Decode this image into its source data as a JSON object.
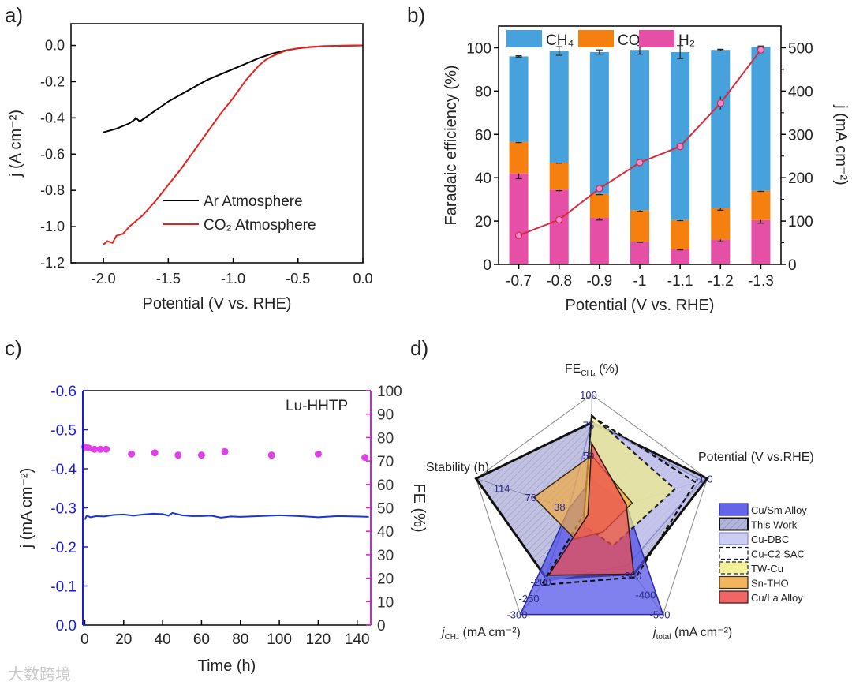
{
  "watermark": "大数跨境",
  "chart_data": [
    {
      "panel_label": "a)",
      "type": "line",
      "title": "",
      "xlabel": "Potential (V vs. RHE)",
      "ylabel": "j (A cm⁻²)",
      "xlim": [
        -2.25,
        0.0
      ],
      "ylim": [
        -1.2,
        0.12
      ],
      "x_ticks": [
        -2.0,
        -1.5,
        -1.0,
        -0.5,
        0.0
      ],
      "x_tick_labels": [
        "-2.0",
        "-1.5",
        "-1.0",
        "-0.5",
        "0.0"
      ],
      "y_ticks": [
        0.0,
        -0.2,
        -0.4,
        -0.6,
        -0.8,
        -1.0,
        -1.2
      ],
      "y_tick_labels": [
        "0.0",
        "-0.2",
        "-0.4",
        "-0.6",
        "-0.8",
        "-1.0",
        "-1.2"
      ],
      "legend_position": "bottom-right",
      "series": [
        {
          "name": "Ar Atmosphere",
          "color": "#000000",
          "x": [
            -2.0,
            -1.9,
            -1.8,
            -1.76,
            -1.75,
            -1.72,
            -1.6,
            -1.5,
            -1.4,
            -1.3,
            -1.2,
            -1.1,
            -1.0,
            -0.9,
            -0.8,
            -0.7,
            -0.6,
            -0.5,
            -0.4,
            -0.2,
            0.0
          ],
          "y": [
            -0.48,
            -0.46,
            -0.43,
            -0.41,
            -0.4,
            -0.42,
            -0.36,
            -0.31,
            -0.27,
            -0.23,
            -0.19,
            -0.16,
            -0.13,
            -0.1,
            -0.07,
            -0.045,
            -0.028,
            -0.016,
            -0.008,
            -0.002,
            0.0
          ]
        },
        {
          "name": "CO₂ Atmosphere",
          "color": "#e8201c",
          "x": [
            -2.0,
            -1.97,
            -1.93,
            -1.9,
            -1.85,
            -1.8,
            -1.7,
            -1.6,
            -1.5,
            -1.4,
            -1.3,
            -1.2,
            -1.1,
            -1.0,
            -0.9,
            -0.8,
            -0.75,
            -0.7,
            -0.6,
            -0.5,
            -0.3,
            0.0
          ],
          "y": [
            -1.1,
            -1.08,
            -1.09,
            -1.05,
            -1.04,
            -1.0,
            -0.94,
            -0.86,
            -0.77,
            -0.68,
            -0.58,
            -0.48,
            -0.38,
            -0.29,
            -0.19,
            -0.11,
            -0.08,
            -0.06,
            -0.03,
            -0.015,
            -0.003,
            0.0
          ]
        }
      ]
    },
    {
      "panel_label": "b)",
      "type": "bar",
      "stacked": true,
      "title": "",
      "xlabel": "Potential (V vs. RHE)",
      "ylabel": "Faradaic efficiency (%)",
      "ylabel_right": "j (mA cm⁻²)",
      "categories": [
        "-0.7",
        "-0.8",
        "-0.9",
        "-1",
        "-1.1",
        "-1.2",
        "-1.3"
      ],
      "ylim": [
        0,
        110
      ],
      "ylim_right": [
        0,
        550
      ],
      "y_ticks": [
        0,
        20,
        40,
        60,
        80,
        100
      ],
      "y_tick_labels": [
        "0",
        "20",
        "40",
        "60",
        "80",
        "100"
      ],
      "y_ticks_right": [
        0,
        100,
        200,
        300,
        400,
        500
      ],
      "y_tick_labels_right": [
        "0",
        "100",
        "200",
        "300",
        "400",
        "500"
      ],
      "legend_position": "top",
      "series": [
        {
          "name": "H₂",
          "color": "#e64fa6",
          "values": [
            42,
            34.5,
            21.5,
            10.5,
            7,
            11.5,
            20.5
          ],
          "errors": [
            2.5,
            0.5,
            1,
            0.3,
            0.3,
            1,
            1.5
          ]
        },
        {
          "name": "CO",
          "color": "#f57f0f",
          "values": [
            14.5,
            12.5,
            11,
            14.5,
            13.5,
            14.5,
            13.5
          ],
          "errors": [
            0.3,
            0.3,
            0.3,
            0.5,
            0.3,
            1,
            0.3
          ]
        },
        {
          "name": "CH₄",
          "color": "#47a1dd",
          "values": [
            39.5,
            51.5,
            65.5,
            74,
            77.5,
            73,
            66.5
          ],
          "errors": [
            0.3,
            2,
            1,
            2,
            3,
            0.3,
            0.3
          ]
        }
      ],
      "legend_order": [
        2,
        1,
        0
      ],
      "line_series": {
        "name": "j",
        "color": "#d42a3c",
        "marker_color": "#f08ad8",
        "values": [
          67,
          103,
          175,
          235,
          272,
          372,
          495
        ],
        "errors": [
          6,
          5,
          8,
          7,
          6,
          15,
          6
        ]
      }
    },
    {
      "panel_label": "c)",
      "type": "scatter",
      "title": "Lu-HHTP",
      "xlabel": "Time (h)",
      "ylabel": "j (mA cm⁻²)",
      "ylabel_right": "FE (%)",
      "xlim": [
        -1,
        147
      ],
      "ylim": [
        0.0,
        -0.6
      ],
      "ylim_right": [
        0,
        100
      ],
      "x_ticks": [
        0,
        20,
        40,
        60,
        80,
        100,
        120,
        140
      ],
      "x_tick_labels": [
        "0",
        "20",
        "40",
        "60",
        "80",
        "100",
        "120",
        "140"
      ],
      "y_ticks": [
        -0.6,
        -0.5,
        -0.4,
        -0.3,
        -0.2,
        -0.1,
        0.0
      ],
      "y_tick_labels": [
        "-0.6",
        "-0.5",
        "-0.4",
        "-0.3",
        "-0.2",
        "-0.1",
        "0.0"
      ],
      "y_ticks_right": [
        0,
        10,
        20,
        30,
        40,
        50,
        60,
        70,
        80,
        90,
        100
      ],
      "y_tick_labels_right": [
        "0",
        "10",
        "20",
        "30",
        "40",
        "50",
        "60",
        "70",
        "80",
        "90",
        "100"
      ],
      "left_axis_color": "#1a1adf",
      "right_axis_color": "#d61fd6",
      "current": {
        "name": "j",
        "color": "#1a35d6",
        "x": [
          0,
          1,
          3,
          6,
          10,
          15,
          20,
          25,
          30,
          35,
          40,
          43,
          45,
          50,
          55,
          60,
          65,
          70,
          75,
          80,
          90,
          100,
          110,
          120,
          130,
          140,
          146
        ],
        "y": [
          -0.27,
          -0.28,
          -0.276,
          -0.279,
          -0.278,
          -0.282,
          -0.283,
          -0.28,
          -0.283,
          -0.285,
          -0.284,
          -0.28,
          -0.287,
          -0.281,
          -0.279,
          -0.279,
          -0.28,
          -0.275,
          -0.278,
          -0.277,
          -0.279,
          -0.281,
          -0.279,
          -0.276,
          -0.279,
          -0.278,
          -0.277
        ]
      },
      "fe": {
        "name": "FE",
        "color": "#e040e8",
        "x": [
          0,
          2,
          5,
          8,
          11,
          24,
          36,
          48,
          60,
          72,
          96,
          120,
          144
        ],
        "y": [
          76,
          75.5,
          75,
          75,
          75,
          73,
          73.5,
          72.5,
          72.5,
          74,
          72.5,
          73,
          71.5
        ]
      }
    },
    {
      "panel_label": "d)",
      "type": "radar",
      "title": "",
      "legend_position": "right",
      "axes": [
        {
          "label": "FE",
          "sub": "CH₄",
          "suffix": " (%)",
          "max": 100,
          "ticks": [
            50,
            75,
            100
          ],
          "tick_labels": [
            "50",
            "75",
            "100"
          ]
        },
        {
          "label": "Potential (V vs.RHE)",
          "sub": "",
          "suffix": "",
          "max": -1.0,
          "ticks": [
            -1.0
          ],
          "tick_labels": [
            "-1.0"
          ]
        },
        {
          "label": "j",
          "sub": "total",
          "suffix": " (mA cm⁻²)",
          "max": -500,
          "ticks": [
            -300,
            -400,
            -500
          ],
          "tick_labels": [
            "-300",
            "-400",
            "-500"
          ]
        },
        {
          "label": "j",
          "sub": "CH₄",
          "suffix": " (mA cm⁻²)",
          "max": -300,
          "ticks": [
            -200,
            -250,
            -300
          ],
          "tick_labels": [
            "-200",
            "-250",
            "-300"
          ]
        },
        {
          "label": "Stability (h)",
          "sub": "",
          "suffix": "",
          "max": 152,
          "ticks": [
            38,
            76,
            114
          ],
          "tick_labels": [
            "38",
            "76",
            "114"
          ]
        }
      ],
      "series": [
        {
          "name": "Cu/Sm Alloy",
          "fill": "#4a4ae8",
          "stroke": "#2a2aa0",
          "dashed": false,
          "values": [
            30,
            -0.3,
            -500,
            -300,
            30
          ]
        },
        {
          "name": "This Work",
          "fill": "#6a6ac0",
          "stroke": "#111111",
          "dashed": false,
          "hatched": true,
          "values": [
            77,
            -1.0,
            -295,
            -190,
            152
          ]
        },
        {
          "name": "Cu-DBC",
          "fill": "#c4c4f0",
          "stroke": "#8a8ad0",
          "dashed": false,
          "values": [
            78,
            -0.95,
            -250,
            -200,
            30
          ]
        },
        {
          "name": "Cu-C2 SAC",
          "fill": "none",
          "stroke": "#111111",
          "dashed": true,
          "values": [
            82,
            -0.9,
            -310,
            -210,
            10
          ]
        },
        {
          "name": "TW-Cu",
          "fill": "#f2ee8a",
          "stroke": "#222222",
          "dashed": true,
          "values": [
            83,
            -0.72,
            -150,
            -30,
            10
          ]
        },
        {
          "name": "Sn-THO",
          "fill": "#f0a840",
          "stroke": "#3a2a10",
          "dashed": false,
          "values": [
            50,
            -0.35,
            -80,
            -70,
            76
          ]
        },
        {
          "name": "Cu/La Alloy",
          "fill": "#ee4a4a",
          "stroke": "#3a1010",
          "dashed": false,
          "values": [
            60,
            -0.3,
            -295,
            -180,
            5
          ]
        }
      ],
      "draw_order": [
        1,
        2,
        0,
        4,
        3,
        5,
        6
      ]
    }
  ]
}
